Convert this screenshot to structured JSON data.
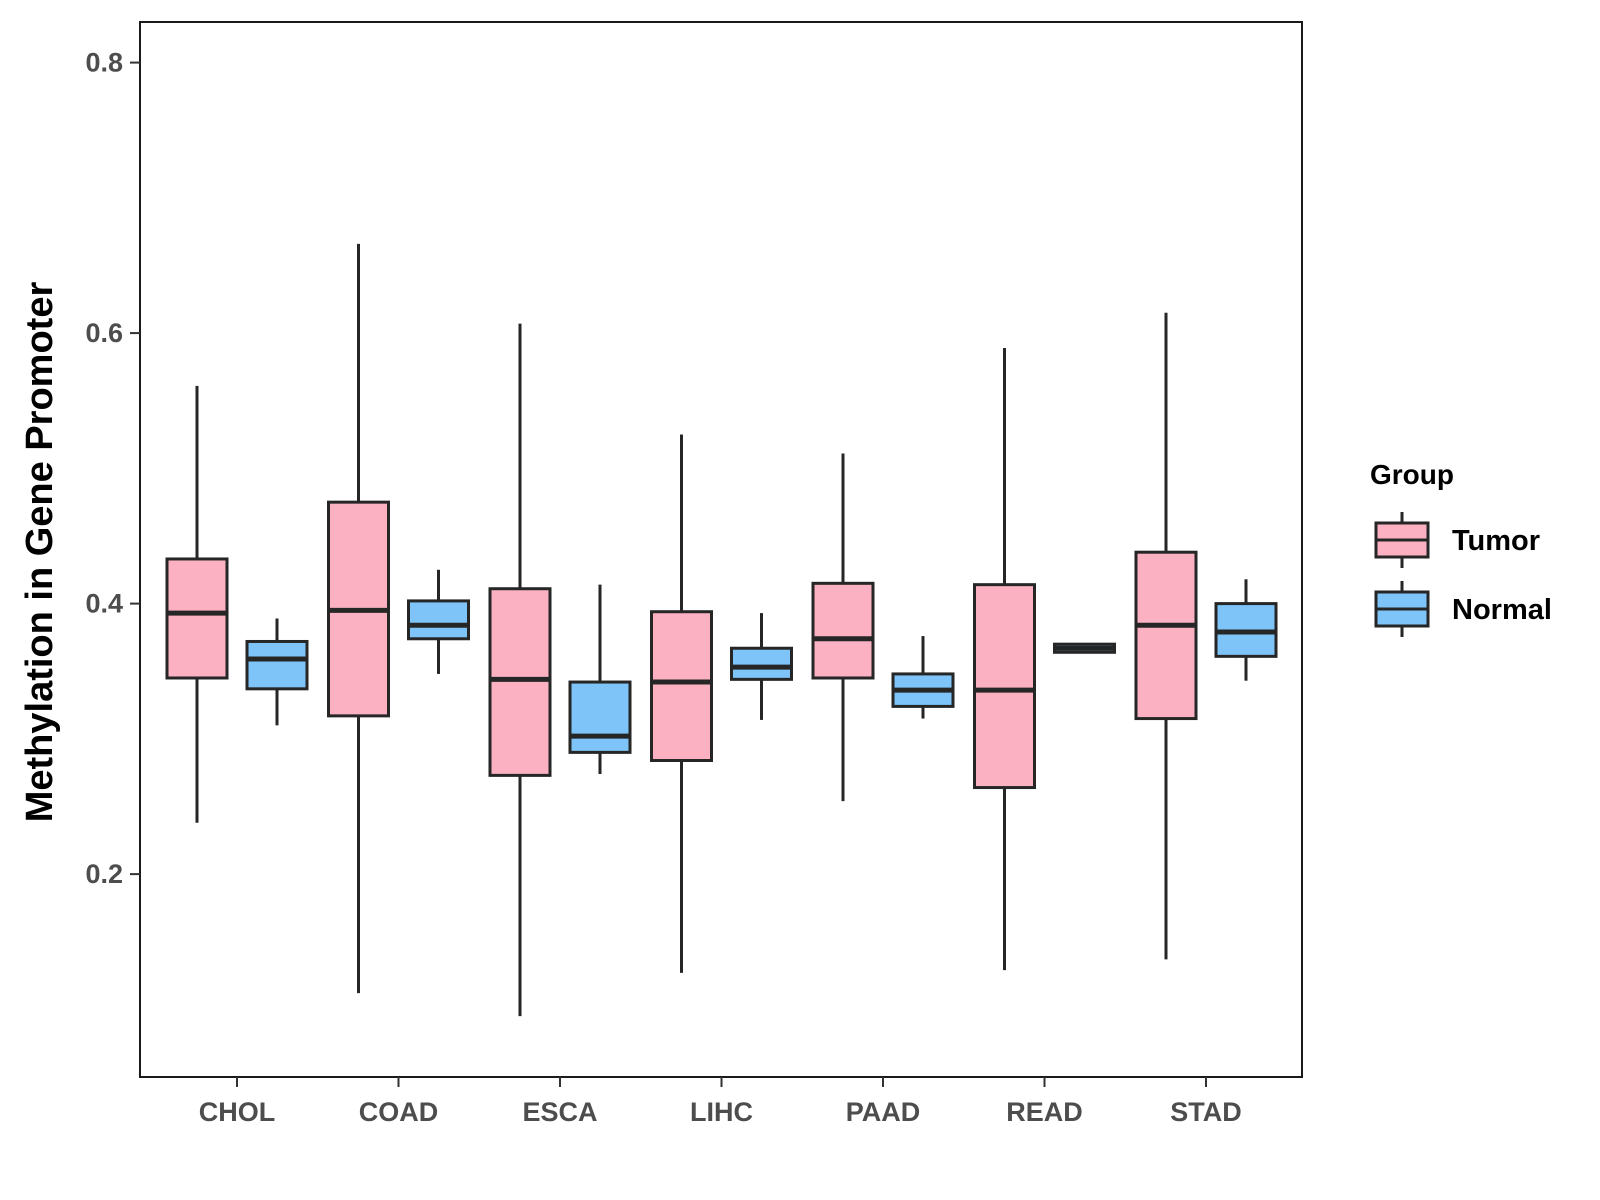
{
  "chart_data": {
    "type": "boxplot",
    "title": "",
    "xlabel": "",
    "ylabel": "Methylation in Gene Promoter",
    "ylim": [
      0.05,
      0.83
    ],
    "yticks": [
      "0.2",
      "0.4",
      "0.6",
      "0.8"
    ],
    "categories": [
      "CHOL",
      "COAD",
      "ESCA",
      "LIHC",
      "PAAD",
      "READ",
      "STAD"
    ],
    "legend": {
      "title": "Group",
      "position": "right"
    },
    "series": [
      {
        "name": "Tumor",
        "color": "#FBB1C2",
        "boxes": [
          {
            "min": 0.238,
            "q1": 0.345,
            "median": 0.393,
            "q3": 0.433,
            "max": 0.561
          },
          {
            "min": 0.112,
            "q1": 0.317,
            "median": 0.395,
            "q3": 0.475,
            "max": 0.666
          },
          {
            "min": 0.095,
            "q1": 0.273,
            "median": 0.344,
            "q3": 0.411,
            "max": 0.607
          },
          {
            "min": 0.127,
            "q1": 0.284,
            "median": 0.342,
            "q3": 0.394,
            "max": 0.525
          },
          {
            "min": 0.254,
            "q1": 0.345,
            "median": 0.374,
            "q3": 0.415,
            "max": 0.511
          },
          {
            "min": 0.129,
            "q1": 0.264,
            "median": 0.336,
            "q3": 0.414,
            "max": 0.589
          },
          {
            "min": 0.137,
            "q1": 0.315,
            "median": 0.384,
            "q3": 0.438,
            "max": 0.615
          }
        ]
      },
      {
        "name": "Normal",
        "color": "#7EC4F8",
        "boxes": [
          {
            "min": 0.31,
            "q1": 0.337,
            "median": 0.359,
            "q3": 0.372,
            "max": 0.389
          },
          {
            "min": 0.348,
            "q1": 0.374,
            "median": 0.384,
            "q3": 0.402,
            "max": 0.425
          },
          {
            "min": 0.274,
            "q1": 0.29,
            "median": 0.302,
            "q3": 0.342,
            "max": 0.414
          },
          {
            "min": 0.314,
            "q1": 0.344,
            "median": 0.353,
            "q3": 0.367,
            "max": 0.393
          },
          {
            "min": 0.315,
            "q1": 0.324,
            "median": 0.336,
            "q3": 0.348,
            "max": 0.376
          },
          {
            "min": 0.364,
            "q1": 0.364,
            "median": 0.367,
            "q3": 0.37,
            "max": 0.37
          },
          {
            "min": 0.343,
            "q1": 0.361,
            "median": 0.379,
            "q3": 0.4,
            "max": 0.418
          }
        ]
      }
    ]
  }
}
